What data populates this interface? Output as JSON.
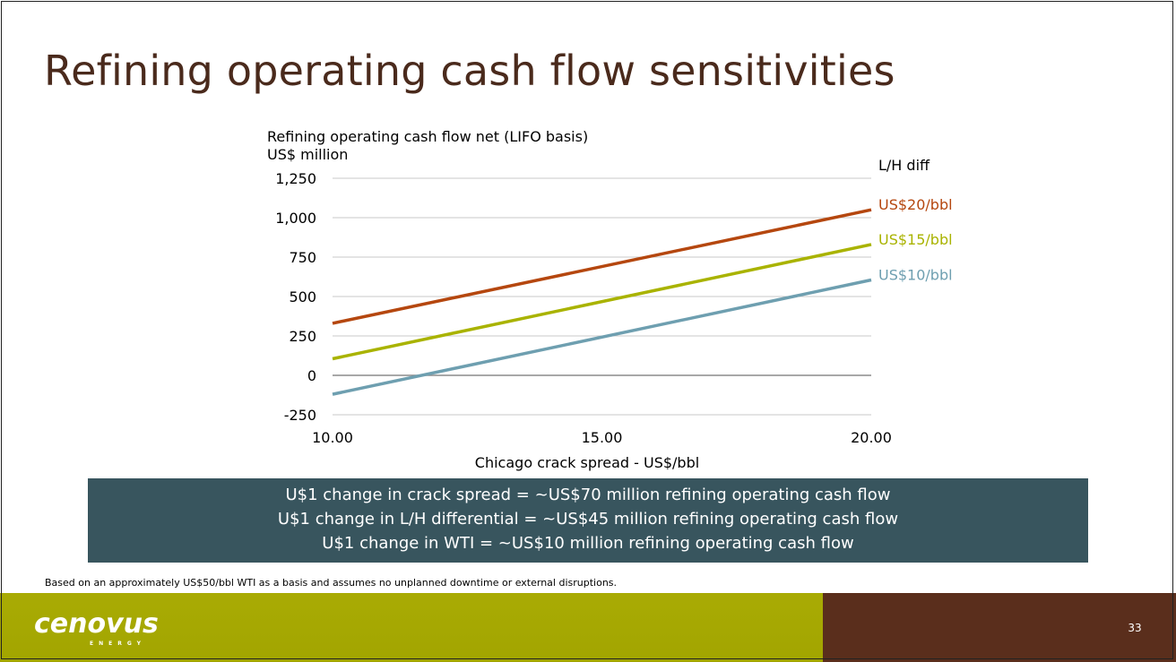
{
  "slide": {
    "title": "Refining operating cash flow sensitivities",
    "callout_lines": [
      "U$1 change in crack spread = ~US$70 million refining operating cash flow",
      "U$1 change in L/H differential = ~US$45 million refining operating cash flow",
      "U$1 change in WTI = ~US$10 million refining operating cash flow"
    ],
    "footnote": "Based on an approximately US$50/bbl WTI as a basis and assumes no unplanned downtime or external disruptions.",
    "logo_text": "cenovus",
    "logo_subtext": "ENERGY",
    "page_number": "33",
    "colors": {
      "title": "#4a2a1c",
      "callout_bg": "#38555e",
      "footer_green": "#a9ab04",
      "footer_brown": "#5a2e1c"
    }
  },
  "chart_data": {
    "type": "line",
    "title": "Refining operating cash flow net (LIFO basis)",
    "ylabel": "US$ million",
    "xlabel": "Chicago crack spread - US$/bbl",
    "legend_title": "L/H diff",
    "xlim": [
      10,
      20
    ],
    "ylim": [
      -250,
      1250
    ],
    "xticks": [
      10,
      15,
      20
    ],
    "xtick_labels": [
      "10.00",
      "15.00",
      "20.00"
    ],
    "yticks": [
      -250,
      0,
      250,
      500,
      750,
      1000,
      1250
    ],
    "ytick_labels": [
      "-250",
      "0",
      "250",
      "500",
      "750",
      "1,000",
      "1,250"
    ],
    "grid": true,
    "series": [
      {
        "name": "US$20/bbl",
        "color": "#b5470f",
        "x": [
          10,
          20
        ],
        "y": [
          330,
          1050
        ]
      },
      {
        "name": "US$15/bbl",
        "color": "#a9b300",
        "x": [
          10,
          20
        ],
        "y": [
          105,
          830
        ]
      },
      {
        "name": "US$10/bbl",
        "color": "#6e9fb0",
        "x": [
          10,
          20
        ],
        "y": [
          -120,
          605
        ]
      }
    ]
  }
}
